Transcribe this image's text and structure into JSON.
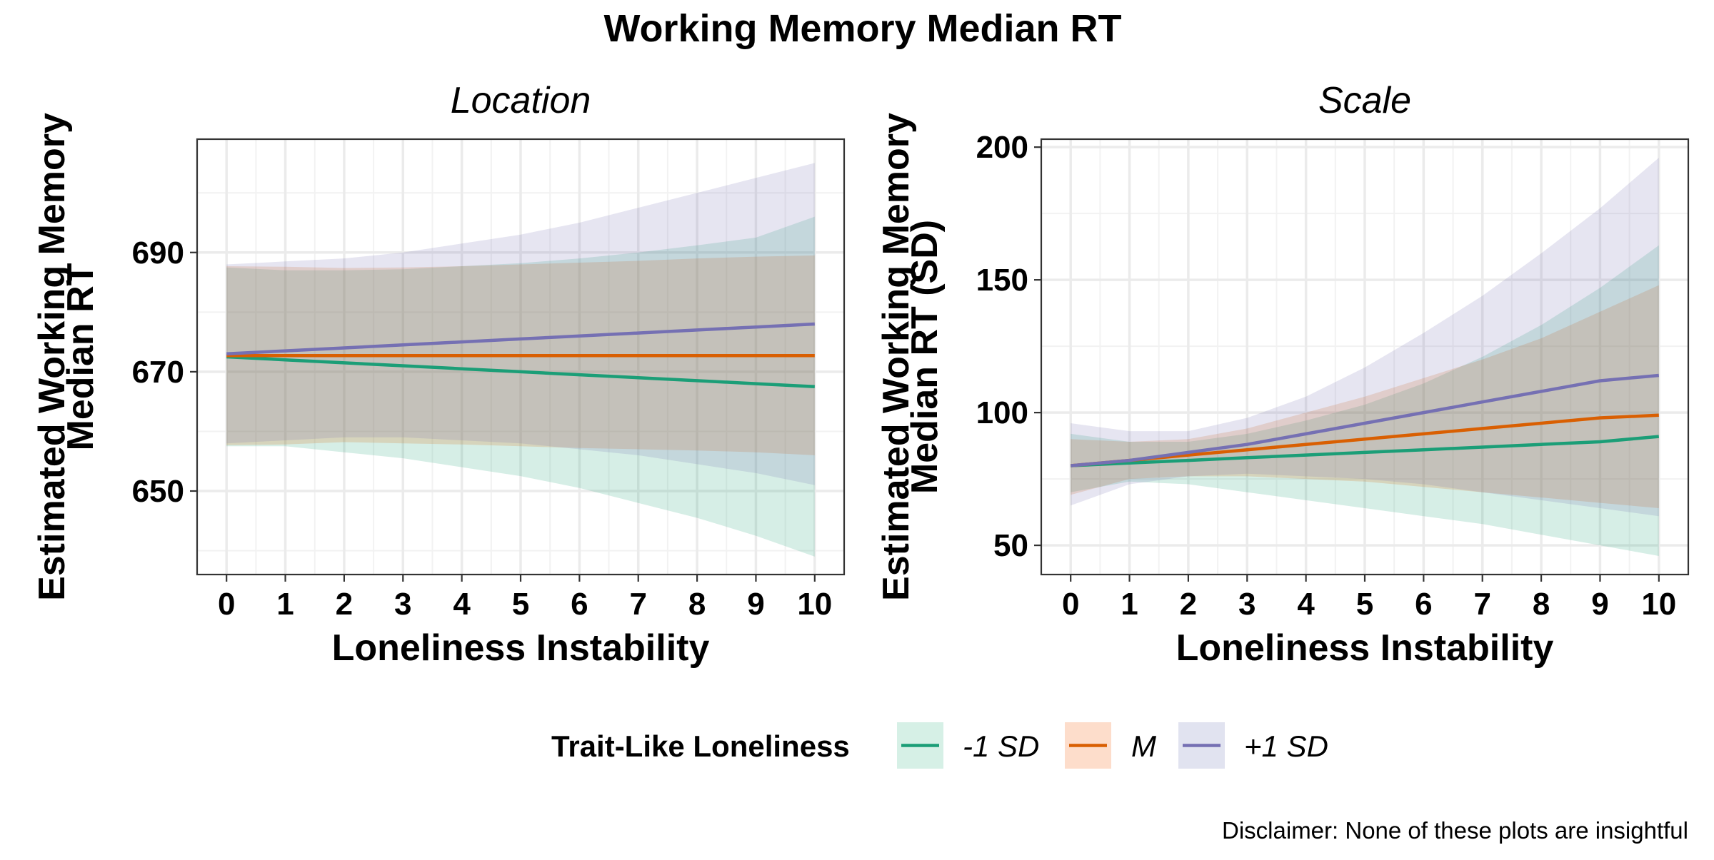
{
  "title": "Working Memory Median RT",
  "caption": "Disclaimer: None of these plots are insightful",
  "legend": {
    "title": "Trait-Like Loneliness",
    "items": [
      {
        "label": "-1 SD",
        "line_color": "#1B9E77",
        "fill_color": "#D6F0E6"
      },
      {
        "label": "M",
        "line_color": "#D95F02",
        "fill_color": "#FDDDCB"
      },
      {
        "label": "+1 SD",
        "line_color": "#7570B3",
        "fill_color": "#E1E3F0"
      }
    ]
  },
  "chart_data": [
    {
      "type": "line",
      "facet": "Location",
      "title": "Location",
      "xlabel": "Loneliness Instability",
      "ylabel": [
        "Estimated Working Memory",
        "Median RT"
      ],
      "xlim": [
        -0.5,
        10.5
      ],
      "ylim": [
        636,
        709
      ],
      "xticks": [
        0,
        1,
        2,
        3,
        4,
        5,
        6,
        7,
        8,
        9,
        10
      ],
      "yticks": [
        650,
        670,
        690
      ],
      "yminor": [
        640,
        660,
        680,
        700
      ],
      "x": [
        0,
        1,
        2,
        3,
        4,
        5,
        6,
        7,
        8,
        9,
        10
      ],
      "series": [
        {
          "name": "-1 SD",
          "color": "#1B9E77",
          "values": [
            672.5,
            672.0,
            671.5,
            671.0,
            670.5,
            670.0,
            669.5,
            669.0,
            668.5,
            668.0,
            667.5
          ],
          "lower": [
            657.5,
            657.5,
            656.5,
            655.5,
            654.0,
            652.5,
            650.5,
            648.0,
            645.5,
            642.5,
            639.0
          ],
          "upper": [
            687.5,
            687.0,
            687.0,
            687.2,
            687.7,
            688.2,
            689.0,
            690.0,
            691.2,
            692.5,
            696.0
          ]
        },
        {
          "name": "M",
          "color": "#D95F02",
          "values": [
            672.7,
            672.7,
            672.7,
            672.7,
            672.7,
            672.7,
            672.7,
            672.7,
            672.7,
            672.7,
            672.7
          ],
          "lower": [
            657.7,
            657.8,
            658.2,
            658.0,
            657.8,
            657.5,
            657.2,
            657.0,
            656.8,
            656.5,
            656.0
          ],
          "upper": [
            687.7,
            687.6,
            687.4,
            687.5,
            687.7,
            688.0,
            688.3,
            688.6,
            689.0,
            689.3,
            689.5
          ]
        },
        {
          "name": "+1 SD",
          "color": "#7570B3",
          "values": [
            673.0,
            673.5,
            674.0,
            674.5,
            675.0,
            675.5,
            676.0,
            676.5,
            677.0,
            677.5,
            678.0
          ],
          "lower": [
            658.0,
            658.5,
            659.0,
            659.0,
            658.5,
            658.0,
            657.0,
            656.0,
            654.5,
            653.0,
            651.0
          ],
          "upper": [
            688.0,
            688.5,
            689.0,
            690.0,
            691.5,
            693.0,
            695.0,
            697.5,
            700.0,
            702.5,
            705.0
          ]
        }
      ]
    },
    {
      "type": "line",
      "facet": "Scale",
      "title": "Scale",
      "xlabel": "Loneliness Instability",
      "ylabel": [
        "Estimated Working Memory",
        "Median RT (SD)"
      ],
      "xlim": [
        -0.5,
        10.5
      ],
      "ylim": [
        39,
        203
      ],
      "xticks": [
        0,
        1,
        2,
        3,
        4,
        5,
        6,
        7,
        8,
        9,
        10
      ],
      "yticks": [
        50,
        100,
        150,
        200
      ],
      "yminor": [
        75,
        125,
        175
      ],
      "x": [
        0,
        1,
        2,
        3,
        4,
        5,
        6,
        7,
        8,
        9,
        10
      ],
      "series": [
        {
          "name": "-1 SD",
          "color": "#1B9E77",
          "values": [
            80.0,
            81.0,
            82.0,
            83.0,
            84.0,
            85.0,
            86.0,
            87.0,
            88.0,
            89.0,
            91.0
          ],
          "lower": [
            70.0,
            74.0,
            73.0,
            70.0,
            67.0,
            64.0,
            61.0,
            58.0,
            54.0,
            50.0,
            46.0
          ],
          "upper": [
            92.0,
            89.0,
            89.0,
            92.0,
            97.0,
            103.0,
            111.0,
            121.0,
            133.0,
            147.0,
            163.0
          ]
        },
        {
          "name": "M",
          "color": "#D95F02",
          "values": [
            80.0,
            82.0,
            84.0,
            86.0,
            88.0,
            90.0,
            92.0,
            94.0,
            96.0,
            98.0,
            99.0
          ],
          "lower": [
            69.0,
            75.0,
            76.0,
            76.0,
            75.0,
            74.0,
            72.0,
            70.0,
            68.0,
            66.0,
            64.0
          ],
          "upper": [
            90.0,
            89.0,
            90.0,
            94.0,
            100.0,
            106.0,
            113.0,
            120.0,
            128.0,
            138.0,
            148.0
          ]
        },
        {
          "name": "+1 SD",
          "color": "#7570B3",
          "values": [
            80.0,
            82.0,
            85.0,
            88.0,
            92.0,
            96.0,
            100.0,
            104.0,
            108.0,
            112.0,
            114.0
          ],
          "lower": [
            65.0,
            73.0,
            76.0,
            77.0,
            76.0,
            75.0,
            73.0,
            70.0,
            67.0,
            64.0,
            61.0
          ],
          "upper": [
            96.0,
            93.0,
            93.0,
            98.0,
            106.0,
            117.0,
            130.0,
            144.0,
            160.0,
            177.0,
            196.0
          ]
        }
      ]
    }
  ]
}
